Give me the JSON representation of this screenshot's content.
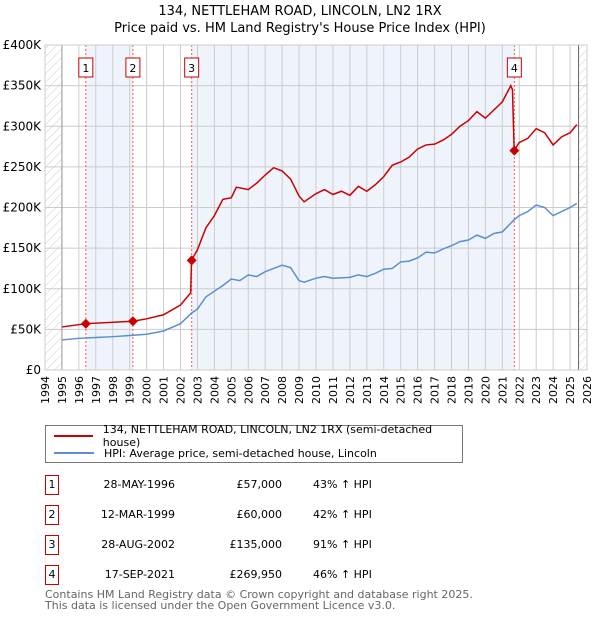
{
  "chart_data": {
    "type": "line",
    "title": "134, NETTLEHAM ROAD, LINCOLN, LN2 1RX",
    "subtitle": "Price paid vs. HM Land Registry's House Price Index (HPI)",
    "xlim": [
      1994,
      2026
    ],
    "ylim": [
      0,
      400000
    ],
    "x_ticks": [
      "1994",
      "1995",
      "1996",
      "1997",
      "1998",
      "1999",
      "2000",
      "2001",
      "2002",
      "2003",
      "2004",
      "2005",
      "2006",
      "2007",
      "2008",
      "2009",
      "2010",
      "2011",
      "2012",
      "2013",
      "2014",
      "2015",
      "2016",
      "2017",
      "2018",
      "2019",
      "2020",
      "2021",
      "2022",
      "2023",
      "2024",
      "2025",
      "2026"
    ],
    "y_ticks": [
      {
        "v": 0,
        "label": "£0"
      },
      {
        "v": 50000,
        "label": "£50K"
      },
      {
        "v": 100000,
        "label": "£100K"
      },
      {
        "v": 150000,
        "label": "£150K"
      },
      {
        "v": 200000,
        "label": "£200K"
      },
      {
        "v": 250000,
        "label": "£250K"
      },
      {
        "v": 300000,
        "label": "£300K"
      },
      {
        "v": 350000,
        "label": "£350K"
      },
      {
        "v": 400000,
        "label": "£400K"
      }
    ],
    "grid": true,
    "series": [
      {
        "name": "134, NETTLEHAM ROAD, LINCOLN, LN2 1RX (semi-detached house)",
        "color": "#cc0000",
        "x": [
          1995,
          1996.4,
          1999.2,
          2000,
          2001,
          2002,
          2002.6,
          2002.65,
          2003,
          2003.5,
          2004,
          2004.5,
          2005,
          2005.3,
          2006,
          2006.5,
          2007,
          2007.5,
          2008,
          2008.5,
          2009,
          2009.3,
          2010,
          2010.5,
          2011,
          2011.5,
          2012,
          2012.5,
          2013,
          2013.5,
          2014,
          2014.5,
          2015,
          2015.5,
          2016,
          2016.5,
          2017,
          2017.5,
          2018,
          2018.5,
          2019,
          2019.5,
          2020,
          2020.5,
          2021,
          2021.5,
          2021.6,
          2021.7,
          2022,
          2022.5,
          2023,
          2023.5,
          2024,
          2024.5,
          2025,
          2025.4
        ],
        "y": [
          53000,
          57000,
          60000,
          63000,
          68000,
          80000,
          95000,
          135000,
          148000,
          175000,
          190000,
          210000,
          212000,
          225000,
          222000,
          230000,
          240000,
          249000,
          245000,
          235000,
          214000,
          207000,
          217000,
          222000,
          216000,
          220000,
          215000,
          226000,
          220000,
          228000,
          238000,
          252000,
          256000,
          262000,
          272000,
          277000,
          278000,
          283000,
          290000,
          300000,
          307000,
          318000,
          310000,
          320000,
          330000,
          350000,
          345000,
          269950,
          280000,
          285000,
          297000,
          292000,
          277000,
          287000,
          292000,
          302000
        ]
      },
      {
        "name": "HPI: Average price, semi-detached house, Lincoln",
        "color": "#5b8fd0",
        "x": [
          1995,
          1996,
          1997,
          1998,
          1999,
          2000,
          2001,
          2002,
          2002.65,
          2003,
          2003.5,
          2004,
          2004.5,
          2005,
          2005.5,
          2006,
          2006.5,
          2007,
          2007.5,
          2008,
          2008.5,
          2009,
          2009.3,
          2010,
          2010.5,
          2011,
          2012,
          2012.5,
          2013,
          2013.5,
          2014,
          2014.5,
          2015,
          2015.5,
          2016,
          2016.5,
          2017,
          2017.5,
          2018,
          2018.5,
          2019,
          2019.5,
          2020,
          2020.5,
          2021,
          2021.7,
          2022,
          2022.5,
          2023,
          2023.5,
          2024,
          2024.5,
          2025,
          2025.4
        ],
        "y": [
          37000,
          39000,
          40000,
          41000,
          42500,
          44000,
          48000,
          57000,
          70000,
          75000,
          90000,
          97000,
          104000,
          112000,
          110000,
          117000,
          115000,
          121000,
          125000,
          129000,
          126000,
          110000,
          108000,
          113000,
          115000,
          113000,
          114000,
          117000,
          115000,
          119000,
          124000,
          125000,
          133000,
          134000,
          138000,
          145000,
          144000,
          149000,
          153000,
          158000,
          160000,
          166000,
          162000,
          168000,
          170000,
          185000,
          190000,
          195000,
          203000,
          200000,
          190000,
          195000,
          200000,
          205000
        ]
      }
    ],
    "sales": [
      {
        "n": "1",
        "x": 1996.41,
        "y": 57000,
        "date": "28-MAY-1996",
        "price": "£57,000",
        "hpi": "43% ↑ HPI"
      },
      {
        "n": "2",
        "x": 1999.19,
        "y": 60000,
        "date": "12-MAR-1999",
        "price": "£60,000",
        "hpi": "42% ↑ HPI"
      },
      {
        "n": "3",
        "x": 2002.66,
        "y": 135000,
        "date": "28-AUG-2002",
        "price": "£135,000",
        "hpi": "91% ↑ HPI"
      },
      {
        "n": "4",
        "x": 2021.71,
        "y": 269950,
        "date": "17-SEP-2021",
        "price": "£269,950",
        "hpi": "46% ↑ HPI"
      }
    ],
    "data_start": 1995,
    "data_end": 2025.5
  },
  "footer": {
    "line1": "Contains HM Land Registry data © Crown copyright and database right 2025.",
    "line2": "This data is licensed under the Open Government Licence v3.0."
  }
}
